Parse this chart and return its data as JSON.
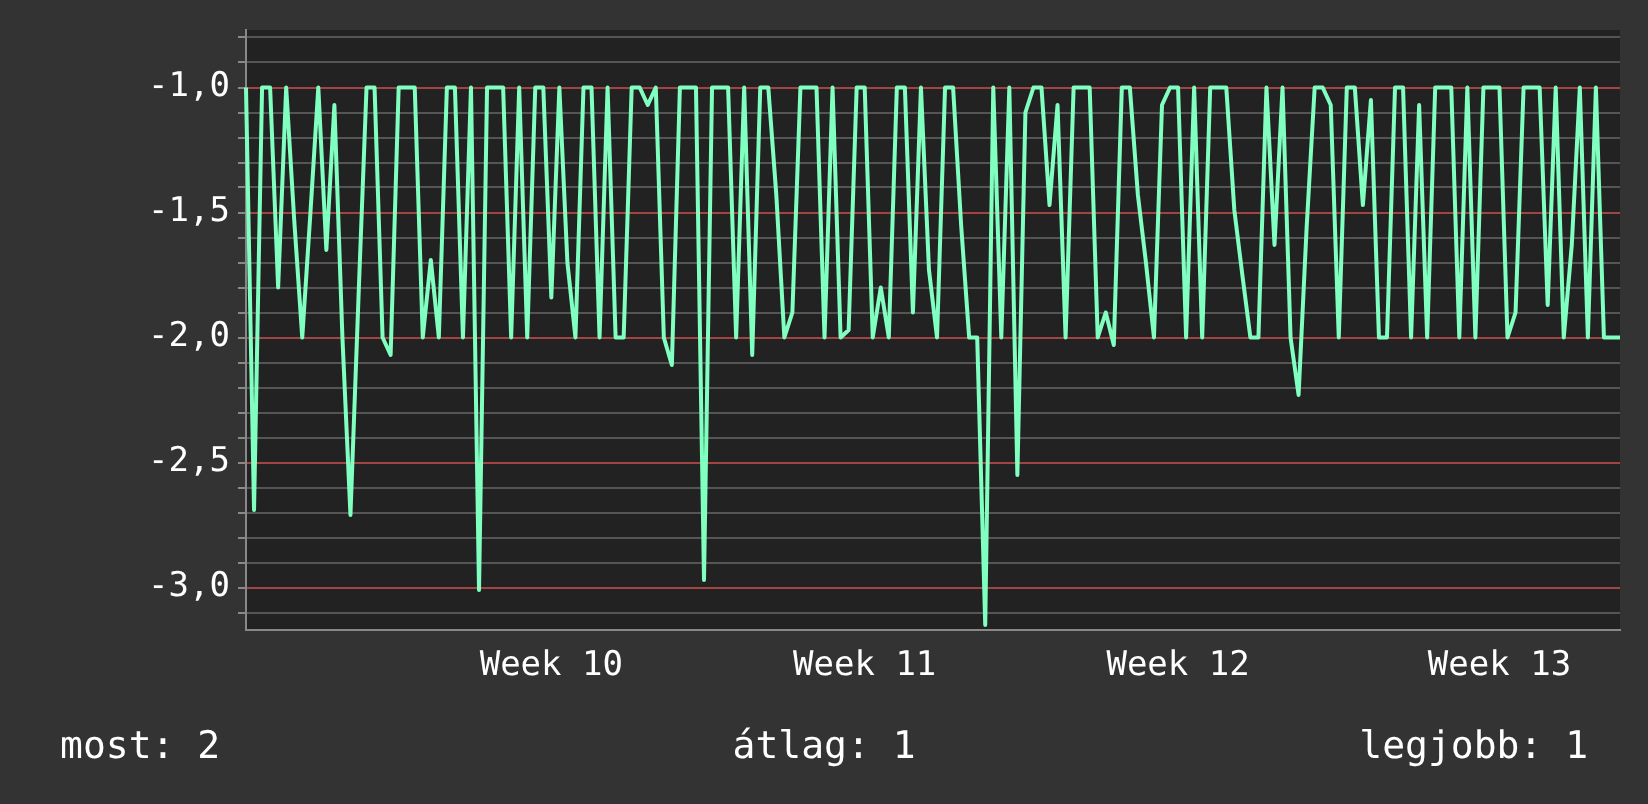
{
  "chart_data": {
    "type": "line",
    "grid": "y",
    "legend": false,
    "marker": "none",
    "line_style": "solid",
    "ylim": [
      -3.17,
      -0.77
    ],
    "categories": [
      null,
      null,
      null,
      null,
      null,
      null,
      null,
      null,
      null,
      null,
      null,
      null,
      null,
      null,
      null,
      null,
      null,
      null,
      null,
      null,
      null,
      null,
      null,
      null,
      null,
      null,
      null,
      null,
      null,
      null,
      null,
      null,
      null,
      null,
      null,
      null,
      null,
      null,
      "Week 10",
      null,
      null,
      null,
      null,
      null,
      null,
      null,
      null,
      null,
      null,
      null,
      null,
      null,
      null,
      null,
      null,
      null,
      null,
      null,
      null,
      null,
      null,
      null,
      null,
      null,
      null,
      null,
      null,
      null,
      null,
      null,
      null,
      null,
      null,
      null,
      null,
      null,
      null,
      "Week 11",
      null,
      null,
      null,
      null,
      null,
      null,
      null,
      null,
      null,
      null,
      null,
      null,
      null,
      null,
      null,
      null,
      null,
      null,
      null,
      null,
      null,
      null,
      null,
      null,
      null,
      null,
      null,
      null,
      null,
      null,
      null,
      null,
      null,
      null,
      null,
      null,
      null,
      null,
      "Week 12",
      null,
      null,
      null,
      null,
      null,
      null,
      null,
      null,
      null,
      null,
      null,
      null,
      null,
      null,
      null,
      null,
      null,
      null,
      null,
      null,
      null,
      null,
      null,
      null,
      null,
      null,
      null,
      null,
      null,
      null,
      null,
      null,
      null,
      null,
      null,
      null,
      null,
      null,
      null,
      "Week 13",
      null,
      null,
      null,
      null,
      null,
      null,
      null,
      null,
      null,
      null,
      null,
      null,
      null,
      null,
      null
    ],
    "yticks": [
      {
        "value": -0.8,
        "label": null
      },
      {
        "value": -0.9,
        "label": null
      },
      {
        "value": -1,
        "label": "-1,0"
      },
      {
        "value": -1.1,
        "label": null
      },
      {
        "value": -1.2,
        "label": null
      },
      {
        "value": -1.3,
        "label": null
      },
      {
        "value": -1.4,
        "label": null
      },
      {
        "value": -1.5,
        "label": "-1,5"
      },
      {
        "value": -1.6,
        "label": null
      },
      {
        "value": -1.7,
        "label": null
      },
      {
        "value": -1.8,
        "label": null
      },
      {
        "value": -1.9,
        "label": null
      },
      {
        "value": -2,
        "label": "-2,0"
      },
      {
        "value": -2.1,
        "label": null
      },
      {
        "value": -2.2,
        "label": null
      },
      {
        "value": -2.3,
        "label": null
      },
      {
        "value": -2.4,
        "label": null
      },
      {
        "value": -2.5,
        "label": "-2,5"
      },
      {
        "value": -2.6,
        "label": null
      },
      {
        "value": -2.7,
        "label": null
      },
      {
        "value": -2.8,
        "label": null
      },
      {
        "value": -2.9,
        "label": null
      },
      {
        "value": -3,
        "label": "-3,0"
      },
      {
        "value": -3.1,
        "label": null
      }
    ],
    "annotations": [
      "most: 2",
      "átlag: 1",
      "legjobb: 1"
    ],
    "series": [
      {
        "color": "#80ffc0",
        "values": [
          -1,
          -2.69,
          -1,
          -1,
          -1.8,
          -1,
          -1.53,
          -2,
          -1.51,
          -1,
          -1.65,
          -1.07,
          -2,
          -2.71,
          -1.84,
          -1,
          -1,
          -2,
          -2.07,
          -1,
          -1,
          -1,
          -2,
          -1.69,
          -2,
          -1,
          -1,
          -2,
          -1,
          -3.01,
          -1,
          -1,
          -1,
          -2,
          -1,
          -2,
          -1,
          -1,
          -1.84,
          -1,
          -1.7,
          -2,
          -1,
          -1,
          -2,
          -1,
          -2,
          -2,
          -1,
          -1,
          -1.07,
          -1,
          -2,
          -2.11,
          -1,
          -1,
          -1,
          -2.97,
          -1,
          -1,
          -1,
          -2,
          -1,
          -2.07,
          -1,
          -1,
          -1.43,
          -2,
          -1.9,
          -1,
          -1,
          -1,
          -2,
          -1,
          -2,
          -1.97,
          -1,
          -1,
          -2,
          -1.8,
          -2,
          -1,
          -1,
          -1.9,
          -1,
          -1.73,
          -2,
          -1,
          -1,
          -1.55,
          -2,
          -2,
          -3.15,
          -1,
          -2,
          -1,
          -2.55,
          -1.1,
          -1,
          -1,
          -1.47,
          -1.07,
          -2,
          -1,
          -1,
          -1,
          -2,
          -1.9,
          -2.03,
          -1,
          -1,
          -1.43,
          -1.7,
          -2,
          -1.07,
          -1,
          -1,
          -2,
          -1,
          -2,
          -1,
          -1,
          -1,
          -1.49,
          -1.75,
          -2,
          -2,
          -1,
          -1.63,
          -1,
          -2,
          -2.23,
          -1.56,
          -1,
          -1,
          -1.07,
          -2,
          -1,
          -1,
          -1.47,
          -1.05,
          -2,
          -2,
          -1,
          -1,
          -2,
          -1.07,
          -2,
          -1,
          -1,
          -1,
          -2,
          -1,
          -2,
          -1,
          -1,
          -1,
          -2,
          -1.9,
          -1,
          -1,
          -1,
          -1.87,
          -1,
          -2,
          -1.63,
          -1,
          -2,
          -1,
          -2,
          -2,
          -2
        ]
      }
    ]
  }
}
